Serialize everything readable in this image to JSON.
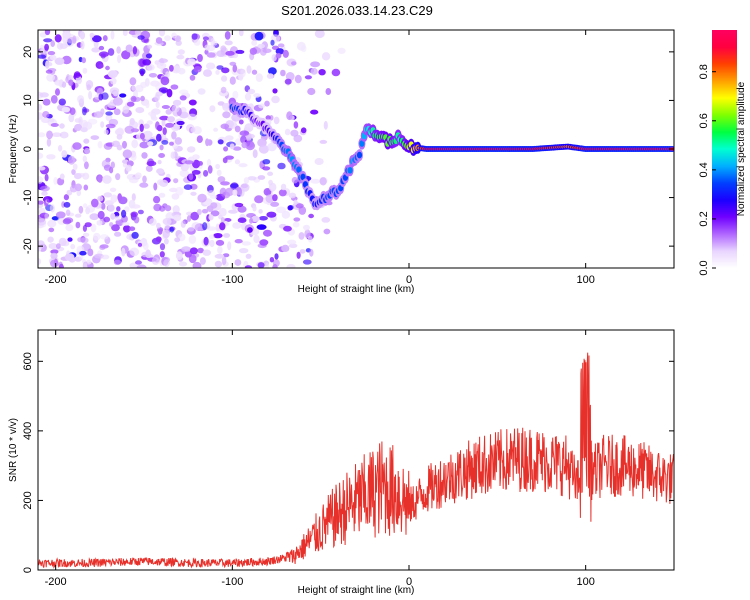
{
  "title": "S201.2026.033.14.23.C29",
  "spectrogram": {
    "type": "heatmap",
    "xlabel": "Height of straight line (km)",
    "ylabel": "Frequency (Hz)",
    "xlim": [
      -210,
      150
    ],
    "ylim": [
      -24.5,
      24.5
    ],
    "xticks": [
      -200,
      -100,
      0,
      100
    ],
    "yticks": [
      -20,
      -10,
      0,
      10,
      20
    ],
    "colorbar": {
      "label": "Normalized spectral amplitude",
      "ticks": [
        "0.0",
        "0.2",
        "0.4",
        "0.6",
        "0.8"
      ],
      "tick_values": [
        0.0,
        0.2,
        0.4,
        0.6,
        0.8
      ],
      "range": [
        0,
        0.97
      ],
      "colors": [
        "#ffffff",
        "#e8d4ff",
        "#b066ff",
        "#7000ff",
        "#1a00ff",
        "#0040ff",
        "#00b0ff",
        "#00ffd0",
        "#00ff40",
        "#80ff00",
        "#ffff00",
        "#ffa000",
        "#ff4000",
        "#ff0040",
        "#ff0060"
      ]
    },
    "signal_track": [
      {
        "x": -100,
        "f": 8.5,
        "amp": 0.35
      },
      {
        "x": -94,
        "f": 8.0,
        "amp": 0.3
      },
      {
        "x": -85,
        "f": 5.5,
        "amp": 0.2
      },
      {
        "x": -78,
        "f": 3.0,
        "amp": 0.25
      },
      {
        "x": -72,
        "f": 1.0,
        "amp": 0.35
      },
      {
        "x": -66,
        "f": -2.5,
        "amp": 0.4
      },
      {
        "x": -60,
        "f": -6.0,
        "amp": 0.35
      },
      {
        "x": -56,
        "f": -9.5,
        "amp": 0.3
      },
      {
        "x": -52,
        "f": -11.5,
        "amp": 0.3
      },
      {
        "x": -46,
        "f": -9.5,
        "amp": 0.35
      },
      {
        "x": -40,
        "f": -8.5,
        "amp": 0.35
      },
      {
        "x": -36,
        "f": -6.0,
        "amp": 0.35
      },
      {
        "x": -32,
        "f": -3.0,
        "amp": 0.4
      },
      {
        "x": -28,
        "f": -1.0,
        "amp": 0.35
      },
      {
        "x": -24,
        "f": 4.0,
        "amp": 0.45
      },
      {
        "x": -18,
        "f": 3.0,
        "amp": 0.55
      },
      {
        "x": -12,
        "f": 1.5,
        "amp": 0.6
      },
      {
        "x": -5,
        "f": 2.5,
        "amp": 0.5
      },
      {
        "x": 0,
        "f": 0.5,
        "amp": 0.65
      },
      {
        "x": 10,
        "f": 0.0,
        "amp": 0.9
      },
      {
        "x": 30,
        "f": 0.0,
        "amp": 0.92
      },
      {
        "x": 50,
        "f": 0.0,
        "amp": 0.92
      },
      {
        "x": 70,
        "f": 0.0,
        "amp": 0.9
      },
      {
        "x": 90,
        "f": 0.5,
        "amp": 0.8
      },
      {
        "x": 100,
        "f": 0.0,
        "amp": 0.9
      },
      {
        "x": 120,
        "f": 0.0,
        "amp": 0.92
      },
      {
        "x": 150,
        "f": 0.0,
        "amp": 0.92
      }
    ]
  },
  "snr": {
    "type": "line",
    "xlabel": "Height of straight line (km)",
    "ylabel": "SNR (10 * v/v)",
    "xlim": [
      -210,
      150
    ],
    "ylim": [
      0,
      690
    ],
    "xticks": [
      -200,
      -100,
      0,
      100
    ],
    "yticks": [
      0,
      200,
      400,
      600
    ],
    "color": "#e8302a",
    "series": [
      {
        "name": "SNR",
        "x": [
          -210,
          -180,
          -150,
          -120,
          -100,
          -80,
          -65,
          -55,
          -45,
          -35,
          -25,
          -15,
          -5,
          0,
          10,
          20,
          30,
          40,
          50,
          60,
          70,
          80,
          90,
          95,
          100,
          105,
          110,
          120,
          130,
          140,
          150
        ],
        "values": [
          20,
          20,
          25,
          20,
          20,
          25,
          40,
          90,
          140,
          180,
          210,
          240,
          220,
          180,
          230,
          260,
          280,
          300,
          310,
          320,
          320,
          310,
          300,
          240,
          300,
          280,
          300,
          300,
          290,
          270,
          260
        ]
      }
    ]
  }
}
